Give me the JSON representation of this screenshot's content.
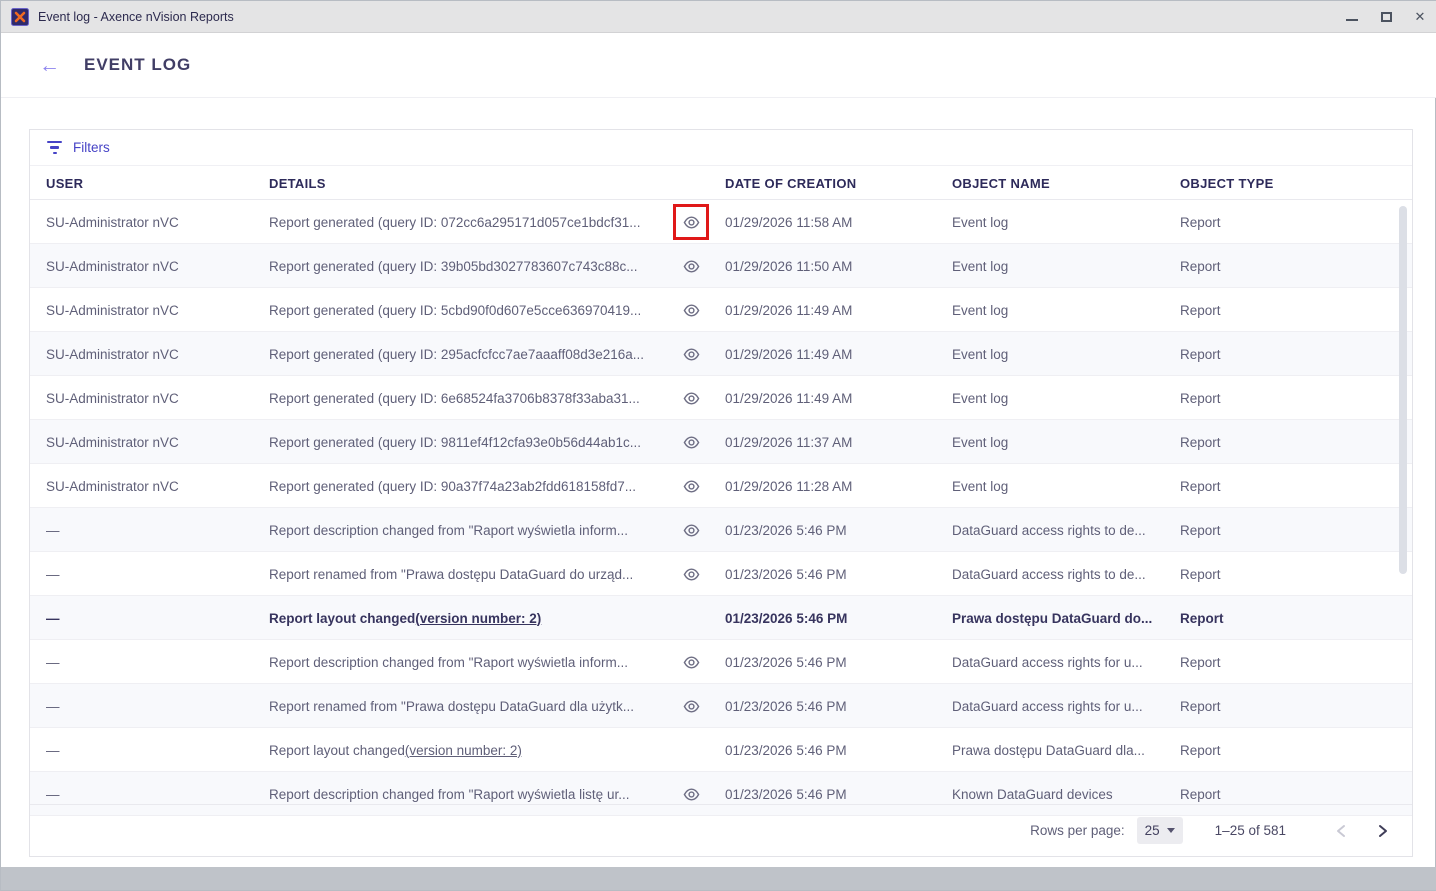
{
  "window": {
    "title": "Event log - Axence nVision Reports"
  },
  "icons": {
    "app": "app-logo-x-icon",
    "titlebar": [
      "minimize-icon",
      "maximize-icon",
      "close-icon"
    ],
    "back": "back-arrow-icon",
    "filter": "filter-icon",
    "row_action": "eye-icon",
    "select": "chevron-down-icon",
    "pager": [
      "chevron-left-icon",
      "chevron-right-icon"
    ]
  },
  "colors": {
    "accent_purple": "#4643c6",
    "title_navy": "#413e66",
    "row_text": "#5f5f78",
    "titlebar_bg": "#e4e4e5",
    "highlight_box_red": "#e01818",
    "zebra_row": "#f8f9fc"
  },
  "header": {
    "back_glyph": "←",
    "title": "EVENT LOG"
  },
  "filters": {
    "label": "Filters"
  },
  "table": {
    "columns": [
      "USER",
      "DETAILS",
      "DATE OF CREATION",
      "OBJECT NAME",
      "OBJECT TYPE"
    ],
    "rows": [
      {
        "user": "SU-Administrator nVC",
        "details": "Report generated (query ID: 072cc6a295171d057ce1bdcf31...",
        "eye": true,
        "marked": true,
        "bold": false,
        "date": "01/29/2026 11:58 AM",
        "object_name": "Event log",
        "object_type": "Report"
      },
      {
        "user": "SU-Administrator nVC",
        "details": "Report generated (query ID: 39b05bd3027783607c743c88c...",
        "eye": true,
        "marked": false,
        "bold": false,
        "date": "01/29/2026 11:50 AM",
        "object_name": "Event log",
        "object_type": "Report"
      },
      {
        "user": "SU-Administrator nVC",
        "details": "Report generated (query ID: 5cbd90f0d607e5cce636970419...",
        "eye": true,
        "marked": false,
        "bold": false,
        "date": "01/29/2026 11:49 AM",
        "object_name": "Event log",
        "object_type": "Report"
      },
      {
        "user": "SU-Administrator nVC",
        "details": "Report generated (query ID: 295acfcfcc7ae7aaaff08d3e216a...",
        "eye": true,
        "marked": false,
        "bold": false,
        "date": "01/29/2026 11:49 AM",
        "object_name": "Event log",
        "object_type": "Report"
      },
      {
        "user": "SU-Administrator nVC",
        "details": "Report generated (query ID: 6e68524fa3706b8378f33aba31...",
        "eye": true,
        "marked": false,
        "bold": false,
        "date": "01/29/2026 11:49 AM",
        "object_name": "Event log",
        "object_type": "Report"
      },
      {
        "user": "SU-Administrator nVC",
        "details": "Report generated (query ID: 9811ef4f12cfa93e0b56d44ab1c...",
        "eye": true,
        "marked": false,
        "bold": false,
        "date": "01/29/2026 11:37 AM",
        "object_name": "Event log",
        "object_type": "Report"
      },
      {
        "user": "SU-Administrator nVC",
        "details": "Report generated (query ID: 90a37f74a23ab2fdd618158fd7...",
        "eye": true,
        "marked": false,
        "bold": false,
        "date": "01/29/2026 11:28 AM",
        "object_name": "Event log",
        "object_type": "Report"
      },
      {
        "user": "—",
        "details": "Report description changed from \"Raport wyświetla inform...",
        "eye": true,
        "marked": false,
        "bold": false,
        "date": "01/23/2026 5:46 PM",
        "object_name": "DataGuard access rights to de...",
        "object_type": "Report"
      },
      {
        "user": "—",
        "details": "Report renamed from \"Prawa dostępu DataGuard do urząd...",
        "eye": true,
        "marked": false,
        "bold": false,
        "date": "01/23/2026 5:46 PM",
        "object_name": "DataGuard access rights to de...",
        "object_type": "Report"
      },
      {
        "user": "—",
        "details": "Report layout changed ",
        "link": "(version number: 2)",
        "eye": false,
        "marked": false,
        "bold": true,
        "date": "01/23/2026 5:46 PM",
        "object_name": "Prawa dostępu DataGuard do...",
        "object_type": "Report"
      },
      {
        "user": "—",
        "details": "Report description changed from \"Raport wyświetla inform...",
        "eye": true,
        "marked": false,
        "bold": false,
        "date": "01/23/2026 5:46 PM",
        "object_name": "DataGuard access rights for u...",
        "object_type": "Report"
      },
      {
        "user": "—",
        "details": "Report renamed from \"Prawa dostępu DataGuard dla użytk...",
        "eye": true,
        "marked": false,
        "bold": false,
        "date": "01/23/2026 5:46 PM",
        "object_name": "DataGuard access rights for u...",
        "object_type": "Report"
      },
      {
        "user": "—",
        "details": "Report layout changed ",
        "link": "(version number: 2)",
        "eye": false,
        "marked": false,
        "bold": false,
        "date": "01/23/2026 5:46 PM",
        "object_name": "Prawa dostępu DataGuard dla...",
        "object_type": "Report"
      },
      {
        "user": "—",
        "details": "Report description changed from \"Raport wyświetla listę ur...",
        "eye": true,
        "marked": false,
        "bold": false,
        "date": "01/23/2026 5:46 PM",
        "object_name": "Known DataGuard devices",
        "object_type": "Report"
      }
    ]
  },
  "pagination": {
    "rows_per_page_label": "Rows per page:",
    "rows_per_page_value": "25",
    "range": "1–25 of 581"
  }
}
